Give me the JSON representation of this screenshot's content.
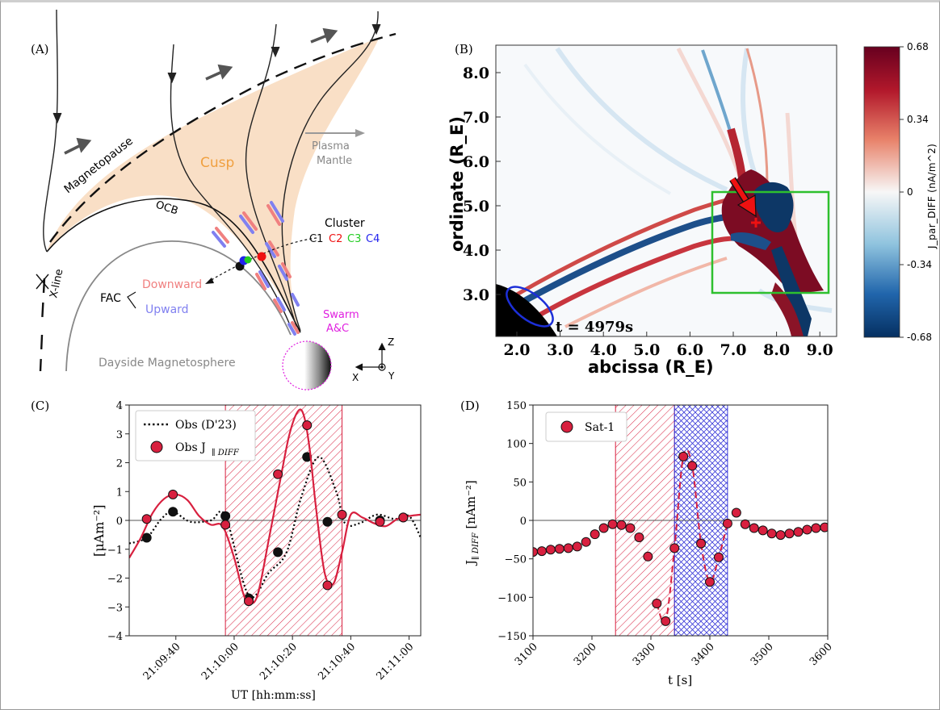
{
  "panels": {
    "a": {
      "letter": "(A)",
      "labels": {
        "magnetopause": "Magnetopause",
        "cusp": "Cusp",
        "plasma_mantle_1": "Plasma",
        "plasma_mantle_2": "Mantle",
        "ocb": "OCB",
        "cluster": "Cluster",
        "c1": "C1",
        "c2": "C2",
        "c3": "C3",
        "c4": "C4",
        "fac": "FAC",
        "downward": "Downward",
        "upward": "Upward",
        "swarm_1": "Swarm",
        "swarm_2": "A&C",
        "xline": "X-line",
        "dayside": "Dayside Magnetosphere",
        "axis_z": "Z",
        "axis_x": "X",
        "axis_y": "Y"
      },
      "colors": {
        "cusp_fill": "#f9dfc6",
        "cusp_label": "#f0a040",
        "downward": "#f08080",
        "upward": "#8080f0",
        "swarm": "#e020e0",
        "c1": "#111111",
        "c2": "#ee1111",
        "c3": "#22cc22",
        "c4": "#2222ee"
      }
    },
    "b": {
      "letter": "(B)",
      "time_label": "t = 4979s",
      "ylabel": "ordinate (R_E)",
      "xlabel": "abcissa (R_E)",
      "xticks": [
        "2.0",
        "3.0",
        "4.0",
        "5.0",
        "6.0",
        "7.0",
        "8.0",
        "9.0"
      ],
      "yticks": [
        "3.0",
        "4.0",
        "5.0",
        "6.0",
        "7.0",
        "8.0"
      ],
      "colorbar_label": "J_par_DIFF (nA/m^2)",
      "colorbar_ticks": [
        "0.68",
        "0.34",
        "0",
        "-0.34",
        "-0.68"
      ],
      "colors": {
        "positive": "#6b0a1f",
        "negative": "#0c2f5e",
        "box": "#2ec02e",
        "ellipse": "#1c2fd8",
        "marker": "#ee1111"
      }
    },
    "c": {
      "letter": "(C)",
      "legend": [
        "Obs (D'23)",
        "Obs J"
      ],
      "legend_sub": "∥ DIFF",
      "ylabel": "[μAm⁻²]",
      "xlabel": "UT [hh:mm:ss]"
    },
    "d": {
      "letter": "(D)",
      "legend": [
        "Sat-1"
      ],
      "ylabel": "J",
      "ylabel_sub": "∥ DIFF",
      "ylabel_unit": " [nAm⁻²]",
      "xlabel": "t [s]"
    }
  },
  "chart_data": [
    {
      "type": "line",
      "panel": "C",
      "xlabel": "UT [hh:mm:ss]",
      "ylabel": "[μAm⁻²]",
      "xlim": [
        -36,
        64
      ],
      "ylim": [
        -4,
        4
      ],
      "xtick_labels": [
        "21:09:40",
        "21:10:00",
        "21:10:20",
        "21:10:40",
        "21:11:00"
      ],
      "xtick_values": [
        -20,
        0,
        20,
        40,
        60
      ],
      "yticks": [
        -4,
        -3,
        -2,
        -1,
        0,
        1,
        2,
        3,
        4
      ],
      "shaded_region": [
        -3,
        37
      ],
      "series": [
        {
          "name": "Obs (D'23)",
          "style": "dotted",
          "color": "#000000",
          "x": [
            -36,
            -30,
            -25,
            -21,
            -15,
            -8,
            -3,
            5,
            12,
            18,
            23,
            29,
            35,
            38,
            43,
            49,
            55,
            60,
            64
          ],
          "y": [
            -0.8,
            -0.6,
            0.05,
            0.3,
            -0.05,
            0.0,
            0.15,
            -2.6,
            -1.8,
            -1.1,
            0.8,
            2.2,
            1.0,
            -0.1,
            -0.1,
            0.2,
            0.05,
            0.15,
            -0.6
          ],
          "marker_x": [
            -30,
            -21,
            -3,
            5,
            15,
            25,
            32,
            50,
            58
          ],
          "marker_y": [
            -0.6,
            0.3,
            0.15,
            -2.7,
            -1.1,
            2.2,
            -0.05,
            0.0,
            0.1
          ]
        },
        {
          "name": "Obs J ∥ DIFF",
          "style": "solid",
          "color": "#d8203f",
          "x": [
            -36,
            -32,
            -28,
            -24,
            -20,
            -16,
            -12,
            -8,
            -4,
            0,
            3,
            5,
            8,
            12,
            16,
            19,
            22,
            24,
            26,
            28,
            31,
            34,
            37,
            40,
            44,
            48,
            52,
            56,
            60,
            64
          ],
          "y": [
            -1.3,
            -0.6,
            0.25,
            0.75,
            0.9,
            0.7,
            0.15,
            -0.15,
            -0.2,
            -1.3,
            -2.5,
            -2.85,
            -2.6,
            -0.6,
            1.5,
            3.0,
            3.8,
            3.6,
            2.4,
            0.5,
            -1.8,
            -2.2,
            -1.1,
            0.2,
            0.1,
            -0.1,
            -0.2,
            0.05,
            0.15,
            0.2
          ],
          "marker_x": [
            -30,
            -21,
            -3,
            5,
            15,
            25,
            32,
            37,
            50,
            58
          ],
          "marker_y": [
            0.05,
            0.9,
            -0.15,
            -2.8,
            1.6,
            3.3,
            -2.25,
            0.2,
            -0.05,
            0.1
          ]
        }
      ]
    },
    {
      "type": "line",
      "panel": "D",
      "xlabel": "t [s]",
      "ylabel": "J ∥ DIFF [nAm⁻²]",
      "xlim": [
        3100,
        3600
      ],
      "ylim": [
        -150,
        150
      ],
      "xticks": [
        3100,
        3200,
        3300,
        3400,
        3500,
        3600
      ],
      "yticks": [
        -150,
        -100,
        -50,
        0,
        50,
        100,
        150
      ],
      "shaded_regions": [
        [
          3240,
          3340
        ],
        [
          3340,
          3430
        ]
      ],
      "series": [
        {
          "name": "Sat-1",
          "style": "markers",
          "color": "#d8203f",
          "x": [
            3100,
            3115,
            3130,
            3145,
            3160,
            3175,
            3190,
            3205,
            3220,
            3235,
            3250,
            3265,
            3280,
            3295,
            3310,
            3325,
            3340,
            3355,
            3370,
            3385,
            3400,
            3415,
            3430,
            3445,
            3460,
            3475,
            3490,
            3505,
            3520,
            3535,
            3550,
            3565,
            3580,
            3595
          ],
          "y": [
            -41,
            -40,
            -38,
            -37,
            -36,
            -34,
            -28,
            -18,
            -10,
            -5,
            -6,
            -10,
            -22,
            -47,
            -108,
            -131,
            -36,
            83,
            71,
            -30,
            -80,
            -48,
            -4,
            10,
            -5,
            -10,
            -13,
            -17,
            -19,
            -17,
            -15,
            -12,
            -10,
            -9
          ]
        },
        {
          "name": "",
          "style": "dashed",
          "color": "#d8203f",
          "x": [
            3310,
            3325,
            3340,
            3355,
            3370,
            3385,
            3400,
            3415,
            3430
          ],
          "y": [
            -108,
            -131,
            -36,
            83,
            71,
            -30,
            -80,
            -48,
            -4
          ]
        }
      ]
    }
  ]
}
